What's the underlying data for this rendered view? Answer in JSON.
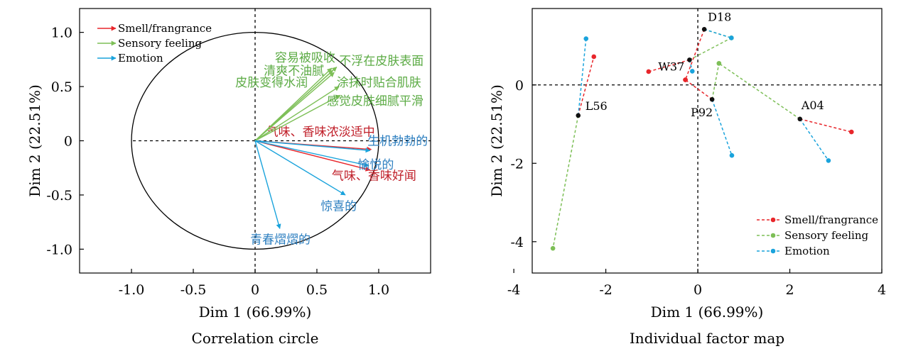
{
  "chart_data": [
    {
      "type": "scatter",
      "subtitle": "Correlation circle",
      "xlabel": "Dim 1 (66.99%)",
      "ylabel": "Dim 2 (22.51%)",
      "xlim": [
        -1.42,
        1.42
      ],
      "ylim": [
        -1.22,
        1.22
      ],
      "xticks": [
        "-1.0",
        "-0.5",
        "0",
        "0.5",
        "1.0"
      ],
      "xtick_values": [
        -1.0,
        -0.5,
        0,
        0.5,
        1.0
      ],
      "yticks": [
        "-1.0",
        "-0.5",
        "0",
        "0.5",
        "1.0"
      ],
      "ytick_values": [
        -1.0,
        -0.5,
        0,
        0.5,
        1.0
      ],
      "unit_circle": true,
      "legend": {
        "placement": "top-left",
        "entries": [
          {
            "name": "Smell/frangrance",
            "color": "#e8262b"
          },
          {
            "name": "Sensory feeling",
            "color": "#7dbf57"
          },
          {
            "name": "Emotion",
            "color": "#1aa3dc"
          }
        ]
      },
      "series": [
        {
          "name": "Smell/frangrance",
          "color": "#e8262b",
          "label_color": "#c0202a",
          "vectors": [
            {
              "label": "气味、香味浓淡适中",
              "x": 0.94,
              "y": -0.08
            },
            {
              "label": "气味、香味好闻",
              "x": 0.93,
              "y": -0.27
            }
          ]
        },
        {
          "name": "Sensory feeling",
          "color": "#7dbf57",
          "label_color": "#5cab45",
          "vectors": [
            {
              "label": "容易被吸收",
              "x": 0.62,
              "y": 0.67
            },
            {
              "label": "清爽不油腻",
              "x": 0.63,
              "y": 0.65
            },
            {
              "label": "皮肤变得水润",
              "x": 0.64,
              "y": 0.63
            },
            {
              "label": "不浮在皮肤表面",
              "x": 0.66,
              "y": 0.68
            },
            {
              "label": "涂抹时贴合肌肤",
              "x": 0.68,
              "y": 0.5
            },
            {
              "label": "感觉皮肤细腻平滑",
              "x": 0.69,
              "y": 0.42
            }
          ]
        },
        {
          "name": "Emotion",
          "color": "#1aa3dc",
          "label_color": "#2d7fc0",
          "vectors": [
            {
              "label": "生机勃勃的",
              "x": 0.93,
              "y": -0.09
            },
            {
              "label": "愉悦的",
              "x": 0.92,
              "y": -0.23
            },
            {
              "label": "惊喜的",
              "x": 0.73,
              "y": -0.5
            },
            {
              "label": "青春熠熠的",
              "x": 0.2,
              "y": -0.81
            }
          ]
        }
      ]
    },
    {
      "type": "scatter",
      "subtitle": "Individual factor map",
      "xlabel": "Dim 1 (66.99%)",
      "ylabel": "Dim 2 (22.51%)",
      "xlim": [
        -3.6,
        4.0
      ],
      "ylim": [
        -4.8,
        1.95
      ],
      "xticks": [
        "-4",
        "-2",
        "0",
        "2",
        "4"
      ],
      "xtick_values": [
        -4,
        -2,
        0,
        2,
        4
      ],
      "yticks": [
        "-4",
        "-2",
        "0"
      ],
      "ytick_values": [
        -4,
        -2,
        0
      ],
      "legend": {
        "placement": "bottom-right",
        "entries": [
          {
            "name": "Smell/frangrance",
            "color": "#e8262b"
          },
          {
            "name": "Sensory feeling",
            "color": "#7dbf57"
          },
          {
            "name": "Emotion",
            "color": "#1aa3dc"
          }
        ]
      },
      "products": [
        {
          "label": "D18",
          "x": 0.14,
          "y": 1.42
        },
        {
          "label": "W37",
          "x": -0.18,
          "y": 0.64
        },
        {
          "label": "L56",
          "x": -2.6,
          "y": -0.78
        },
        {
          "label": "P92",
          "x": 0.31,
          "y": -0.37
        },
        {
          "label": "A04",
          "x": 2.22,
          "y": -0.87
        }
      ],
      "series": [
        {
          "name": "Smell/frangrance",
          "color": "#e8262b",
          "points": [
            {
              "product": "D18",
              "x": -0.27,
              "y": 0.13
            },
            {
              "product": "W37",
              "x": -1.07,
              "y": 0.34
            },
            {
              "product": "L56",
              "x": -2.26,
              "y": 0.72
            },
            {
              "product": "P92",
              "x": -0.27,
              "y": 0.13
            },
            {
              "product": "A04",
              "x": 3.34,
              "y": -1.2
            }
          ]
        },
        {
          "name": "Sensory feeling",
          "color": "#7dbf57",
          "points": [
            {
              "product": "D18",
              "x": 0.73,
              "y": 1.2
            },
            {
              "product": "W37",
              "x": 0.73,
              "y": 1.2
            },
            {
              "product": "L56",
              "x": -3.15,
              "y": -4.17
            },
            {
              "product": "P92",
              "x": 0.46,
              "y": 0.55
            },
            {
              "product": "A04",
              "x": 0.46,
              "y": 0.55
            }
          ]
        },
        {
          "name": "Emotion",
          "color": "#1aa3dc",
          "points": [
            {
              "product": "D18",
              "x": 0.73,
              "y": 1.2
            },
            {
              "product": "W37",
              "x": -0.12,
              "y": 0.35
            },
            {
              "product": "L56",
              "x": -2.43,
              "y": 1.18
            },
            {
              "product": "P92",
              "x": 0.74,
              "y": -1.8
            },
            {
              "product": "A04",
              "x": 2.84,
              "y": -1.93
            }
          ]
        }
      ]
    }
  ]
}
